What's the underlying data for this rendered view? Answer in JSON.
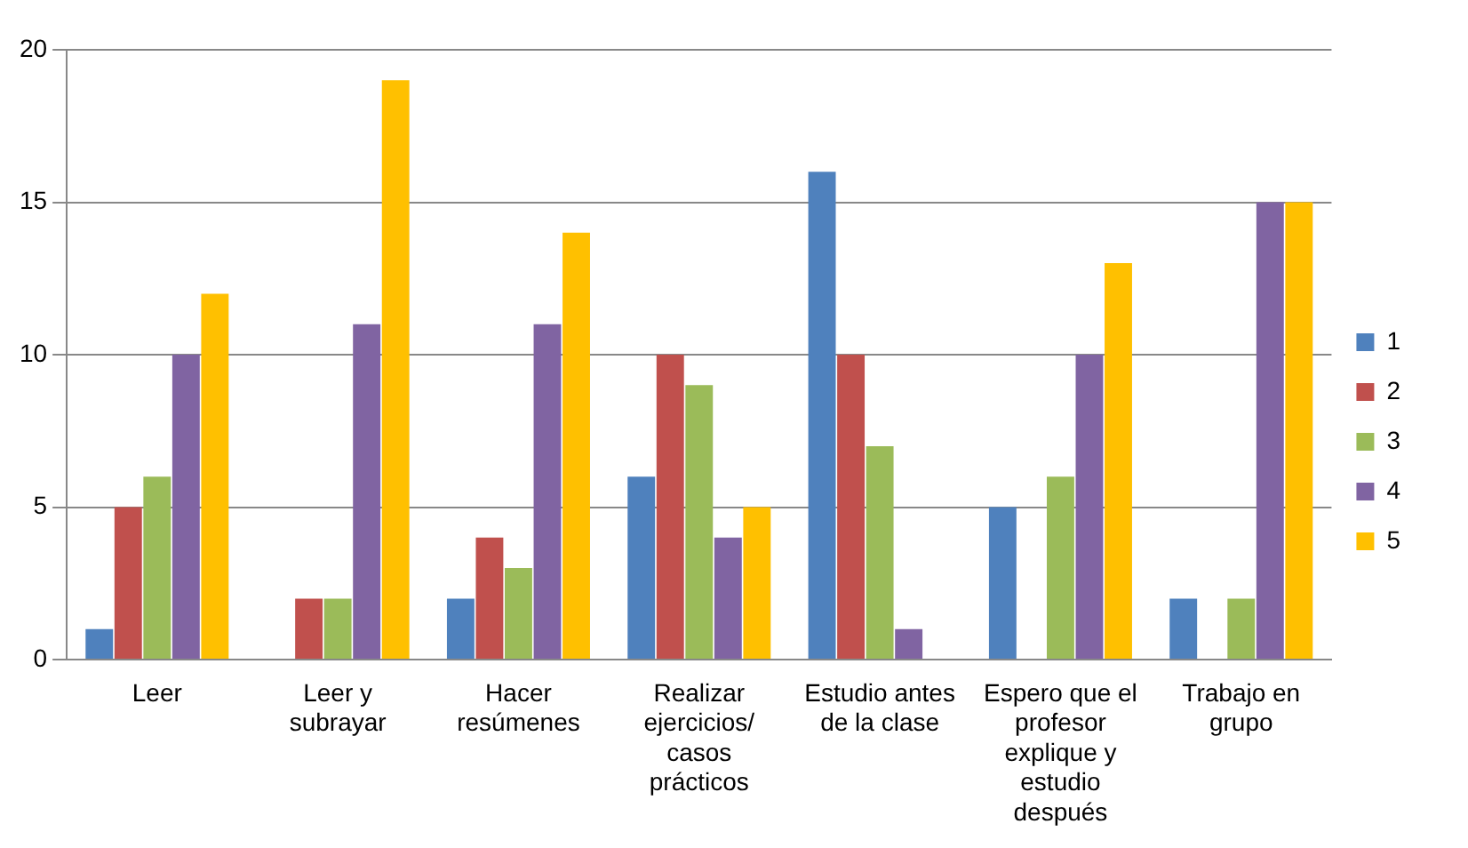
{
  "chart_data": {
    "type": "bar",
    "categories": [
      "Leer",
      "Leer y subrayar",
      "Hacer resúmenes",
      "Realizar ejercicios/ casos prácticos",
      "Estudio antes de la clase",
      "Espero que el profesor explique y estudio después",
      "Trabajo en grupo"
    ],
    "series": [
      {
        "name": "1",
        "color": "#4f81bd",
        "values": [
          1,
          0,
          2,
          6,
          16,
          5,
          2
        ]
      },
      {
        "name": "2",
        "color": "#c0504d",
        "values": [
          5,
          2,
          4,
          10,
          10,
          0,
          0
        ]
      },
      {
        "name": "3",
        "color": "#9bbb59",
        "values": [
          6,
          2,
          3,
          9,
          7,
          6,
          2
        ]
      },
      {
        "name": "4",
        "color": "#8064a2",
        "values": [
          10,
          11,
          11,
          4,
          1,
          10,
          15
        ]
      },
      {
        "name": "5",
        "color": "#ffc000",
        "values": [
          12,
          19,
          14,
          5,
          0,
          13,
          15
        ]
      }
    ],
    "ylim": [
      0,
      20
    ],
    "yticks": [
      0,
      5,
      10,
      15,
      20
    ],
    "grid": "y",
    "legend": "right"
  }
}
